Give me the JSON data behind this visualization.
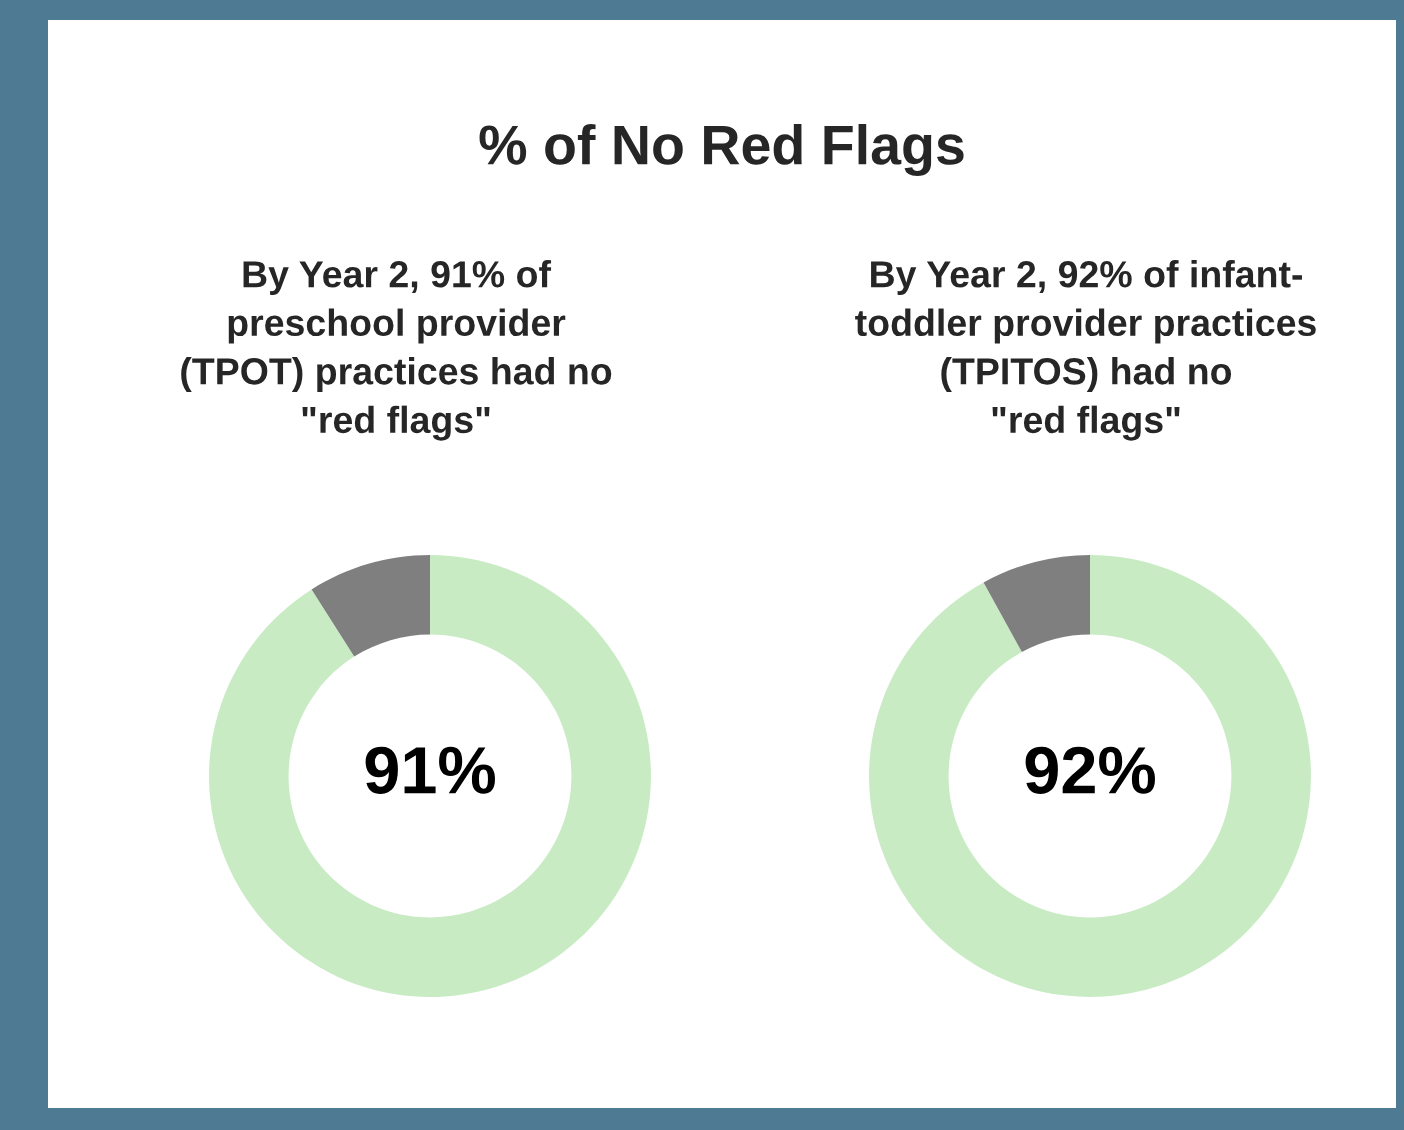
{
  "chart_data": [
    {
      "type": "donut",
      "title": "% of No Red Flags",
      "subtitle": "By Year 2, 91% of\npreschool provider\n(TPOT) practices had no\n\"red flags\"",
      "categories": [
        null,
        null
      ],
      "values": [
        91,
        9
      ],
      "colors": [
        "#c8ebc4",
        "#7f7f7f"
      ],
      "annotations": [
        "91%"
      ]
    },
    {
      "type": "donut",
      "subtitle": "By Year 2, 92% of infant-\ntoddler provider practices\n(TPITOS) had no\n\"red flags\"",
      "categories": [
        null,
        null
      ],
      "values": [
        92,
        8
      ],
      "colors": [
        "#c8ebc4",
        "#7f7f7f"
      ],
      "annotations": [
        "92%"
      ]
    }
  ]
}
